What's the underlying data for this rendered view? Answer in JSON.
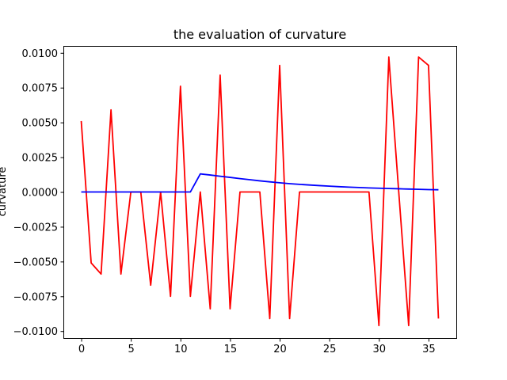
{
  "chart_data": {
    "type": "line",
    "title": "the evaluation of curvature",
    "xlabel": "",
    "ylabel": "curvature",
    "xlim": [
      -1.8,
      37.8
    ],
    "ylim": [
      -0.0105,
      0.0105
    ],
    "xticks": [
      0,
      5,
      10,
      15,
      20,
      25,
      30,
      35
    ],
    "xtick_labels": [
      "0",
      "5",
      "10",
      "15",
      "20",
      "25",
      "30",
      "35"
    ],
    "yticks": [
      -0.01,
      -0.0075,
      -0.005,
      -0.0025,
      0,
      0.0025,
      0.005,
      0.0075,
      0.01
    ],
    "ytick_labels": [
      "−0.0100",
      "−0.0075",
      "−0.0050",
      "−0.0025",
      "0.0000",
      "0.0025",
      "0.0050",
      "0.0075",
      "0.0100"
    ],
    "grid": false,
    "x": [
      0,
      1,
      2,
      3,
      4,
      5,
      6,
      7,
      8,
      9,
      10,
      11,
      12,
      13,
      14,
      15,
      16,
      17,
      18,
      19,
      20,
      21,
      22,
      23,
      24,
      25,
      26,
      27,
      28,
      29,
      30,
      31,
      32,
      33,
      34,
      35,
      36
    ],
    "series": [
      {
        "color": "#ff0000",
        "values": [
          0.0051,
          -0.0051,
          -0.0059,
          0.0059,
          -0.0059,
          0.0,
          0.0,
          -0.0067,
          0.0,
          -0.0075,
          0.0076,
          -0.0075,
          0.0,
          -0.0084,
          0.0084,
          -0.0084,
          0.0,
          0.0,
          0.0,
          -0.0091,
          0.0091,
          -0.0091,
          0.0,
          0.0,
          0.0,
          0.0,
          0.0,
          0.0,
          0.0,
          0.0,
          -0.0096,
          0.0097,
          0.0,
          -0.0096,
          0.0097,
          0.0091,
          -0.0091
        ]
      },
      {
        "color": "#0000ff",
        "values": [
          0.0,
          0.0,
          0.0,
          0.0,
          0.0,
          0.0,
          0.0,
          0.0,
          0.0,
          0.0,
          0.0,
          0.0,
          0.0013,
          0.00122,
          0.00113,
          0.00105,
          0.00096,
          0.00088,
          0.0008,
          0.00073,
          0.00066,
          0.0006,
          0.00055,
          0.0005,
          0.00046,
          0.00042,
          0.00038,
          0.00035,
          0.00032,
          0.00029,
          0.00027,
          0.00025,
          0.00023,
          0.00021,
          0.00019,
          0.00017,
          0.00016
        ]
      }
    ]
  }
}
